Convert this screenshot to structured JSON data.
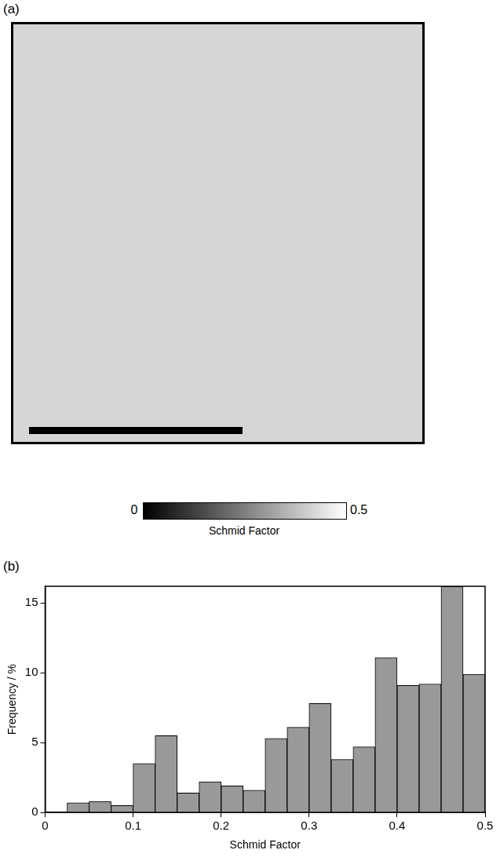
{
  "map": {
    "panel_label": "(a)",
    "colorbar": {
      "range": [
        0,
        0.5
      ],
      "ticks": [
        0,
        0.5
      ],
      "label": "Schmid Factor"
    }
  },
  "chart_data": {
    "type": "histogram",
    "panel_label": "(b)",
    "x_label": "Schmid Factor",
    "y_label": "Frequency / %",
    "bins": [
      0.025,
      0.05,
      0.075,
      0.1,
      0.125,
      0.15,
      0.175,
      0.2,
      0.225,
      0.25,
      0.275,
      0.3,
      0.325,
      0.35,
      0.375,
      0.4,
      0.425,
      0.45,
      0.475,
      0.5
    ],
    "values": [
      0.7,
      0.8,
      0.5,
      3.5,
      5.5,
      1.4,
      2.2,
      1.9,
      1.6,
      5.3,
      6.1,
      7.8,
      3.8,
      4.7,
      11.1,
      9.1,
      9.2,
      16.2,
      9.9
    ],
    "color": "#999999",
    "xlim": [
      0,
      0.5
    ],
    "xticks": [
      0,
      0.1,
      0.2,
      0.3,
      0.4,
      0.5
    ],
    "ylim": [
      0,
      16.2
    ],
    "yticks": [
      0,
      5,
      10,
      15
    ],
    "grid": false
  }
}
